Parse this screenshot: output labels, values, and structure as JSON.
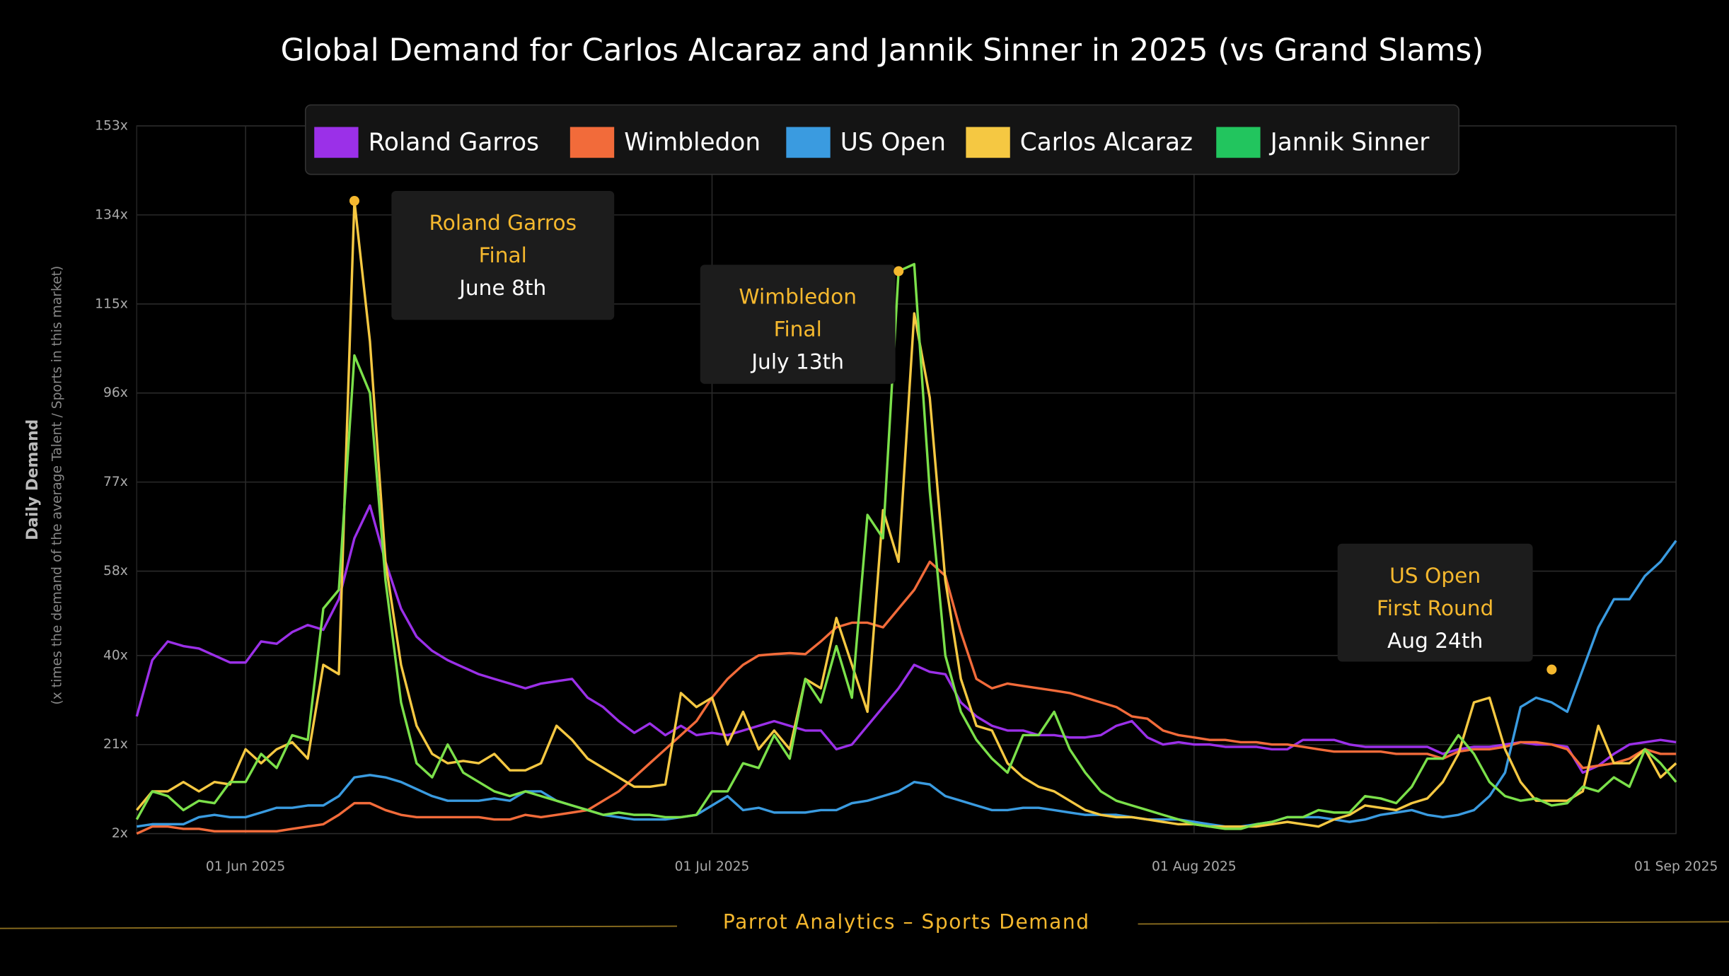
{
  "chart_data": {
    "type": "line",
    "title": "Global Demand for Carlos Alcaraz and Jannik Sinner in 2025 (vs Grand Slams)",
    "y_label": "Daily Demand",
    "y_sublabel": "(x times the demand of the average Talent / Sports in this market)",
    "footer": "Parrot Analytics – Sports Demand",
    "x": [
      "2025-05-25",
      "2025-05-26",
      "2025-05-27",
      "2025-05-28",
      "2025-05-29",
      "2025-05-30",
      "2025-05-31",
      "2025-06-01",
      "2025-06-02",
      "2025-06-03",
      "2025-06-04",
      "2025-06-05",
      "2025-06-06",
      "2025-06-07",
      "2025-06-08",
      "2025-06-09",
      "2025-06-10",
      "2025-06-11",
      "2025-06-12",
      "2025-06-13",
      "2025-06-14",
      "2025-06-15",
      "2025-06-16",
      "2025-06-17",
      "2025-06-18",
      "2025-06-19",
      "2025-06-20",
      "2025-06-21",
      "2025-06-22",
      "2025-06-23",
      "2025-06-24",
      "2025-06-25",
      "2025-06-26",
      "2025-06-27",
      "2025-06-28",
      "2025-06-29",
      "2025-06-30",
      "2025-07-01",
      "2025-07-02",
      "2025-07-03",
      "2025-07-04",
      "2025-07-05",
      "2025-07-06",
      "2025-07-07",
      "2025-07-08",
      "2025-07-09",
      "2025-07-10",
      "2025-07-11",
      "2025-07-12",
      "2025-07-13",
      "2025-07-14",
      "2025-07-15",
      "2025-07-16",
      "2025-07-17",
      "2025-07-18",
      "2025-07-19",
      "2025-07-20",
      "2025-07-21",
      "2025-07-22",
      "2025-07-23",
      "2025-07-24",
      "2025-07-25",
      "2025-07-26",
      "2025-07-27",
      "2025-07-28",
      "2025-07-29",
      "2025-07-30",
      "2025-07-31",
      "2025-08-01",
      "2025-08-02",
      "2025-08-03",
      "2025-08-04",
      "2025-08-05",
      "2025-08-06",
      "2025-08-07",
      "2025-08-08",
      "2025-08-09",
      "2025-08-10",
      "2025-08-11",
      "2025-08-12",
      "2025-08-13",
      "2025-08-14",
      "2025-08-15",
      "2025-08-16",
      "2025-08-17",
      "2025-08-18",
      "2025-08-19",
      "2025-08-20",
      "2025-08-21",
      "2025-08-22",
      "2025-08-23",
      "2025-08-24",
      "2025-08-25",
      "2025-08-26",
      "2025-08-27",
      "2025-08-28",
      "2025-08-29",
      "2025-08-30",
      "2025-08-31",
      "2025-09-01"
    ],
    "series": [
      {
        "name": "Roland Garros",
        "color": "#9b30e8",
        "values": [
          27,
          39,
          43,
          42,
          41.5,
          40,
          38.5,
          38.5,
          43,
          42.5,
          45,
          46.5,
          45.5,
          52,
          65,
          72,
          60,
          50,
          44,
          41,
          39,
          37.5,
          36,
          35,
          34,
          33,
          34,
          34.5,
          35,
          31,
          29,
          26,
          23.5,
          25.5,
          23,
          25,
          23,
          23.5,
          23,
          24,
          25,
          26,
          25,
          24,
          24,
          20,
          21,
          25,
          29,
          33,
          38,
          36.5,
          36,
          30,
          27,
          25,
          24,
          24,
          23,
          23,
          22.5,
          22.5,
          23,
          25,
          26,
          22.5,
          21,
          21.5,
          21,
          21,
          20.5,
          20.5,
          20.5,
          20,
          20,
          22,
          22,
          22,
          21,
          20.5,
          20.5,
          20.5,
          20.5,
          20.5,
          19,
          20,
          20.5,
          20.5,
          21,
          21.5,
          21,
          21,
          20.5,
          15,
          16.5,
          19,
          21,
          21.5,
          22,
          21.5
        ]
      },
      {
        "name": "Wimbledon",
        "color": "#f26b3a",
        "values": [
          2,
          3.5,
          3.5,
          3,
          3,
          2.5,
          2.5,
          2.5,
          2.5,
          2.5,
          3,
          3.5,
          4,
          6,
          8.5,
          8.5,
          7,
          6,
          5.5,
          5.5,
          5.5,
          5.5,
          5.5,
          5,
          5,
          6,
          5.5,
          6,
          6.5,
          7,
          9,
          11,
          14,
          17,
          20,
          23,
          26,
          31,
          35,
          38,
          40,
          40.3,
          40.5,
          40.3,
          43,
          46,
          47,
          47,
          46,
          50,
          54,
          60,
          57,
          45,
          35,
          33,
          34,
          33.5,
          33,
          32.5,
          32,
          31,
          30,
          29,
          27,
          26.5,
          24,
          23,
          22.5,
          22,
          22,
          21.5,
          21.5,
          21,
          21,
          20.5,
          20,
          19.5,
          19.5,
          19.5,
          19.5,
          19,
          19,
          19,
          18,
          19.5,
          20,
          20,
          20.5,
          21.5,
          21.5,
          21,
          20,
          16,
          16.5,
          17,
          18,
          20,
          19,
          19
        ]
      },
      {
        "name": "US Open",
        "color": "#3a9be0",
        "values": [
          3.5,
          4,
          4,
          4,
          5.5,
          6,
          5.5,
          5.5,
          6.5,
          7.5,
          7.5,
          8,
          8,
          10,
          14,
          14.5,
          14,
          13,
          11.5,
          10,
          9,
          9,
          9,
          9.5,
          9,
          11,
          11,
          9,
          8,
          7,
          6,
          5.5,
          5,
          5,
          5,
          5.5,
          6,
          8,
          10,
          7,
          7.5,
          6.5,
          6.5,
          6.5,
          7,
          7,
          8.5,
          9,
          10,
          11,
          13,
          12.5,
          10,
          9,
          8,
          7,
          7,
          7.5,
          7.5,
          7,
          6.5,
          6,
          6,
          6,
          5.5,
          5,
          5,
          5,
          4.5,
          4,
          3.5,
          3.5,
          4,
          4.5,
          5.5,
          5.5,
          5.5,
          5,
          4.5,
          5,
          6,
          6.5,
          7,
          6,
          5.5,
          6,
          7,
          10,
          15,
          29,
          31,
          30,
          28,
          37,
          46,
          52,
          52,
          57,
          60,
          64.5
        ]
      },
      {
        "name": "Carlos Alcaraz",
        "color": "#f5c842",
        "values": [
          7,
          11,
          11,
          13,
          11,
          13,
          12.5,
          20,
          17,
          20,
          21.5,
          18,
          38,
          36,
          137,
          107,
          60,
          38,
          25,
          19,
          17,
          17.5,
          17,
          19,
          15.5,
          15.5,
          17,
          25,
          22,
          18,
          16,
          14,
          12,
          12,
          12.5,
          32,
          29,
          31,
          21,
          28,
          20,
          24,
          20,
          35,
          33,
          48,
          38,
          28,
          71,
          60,
          113,
          95,
          56,
          35,
          25,
          24,
          17,
          14,
          12,
          11,
          9,
          7,
          6,
          5.5,
          5.5,
          5,
          4.5,
          4,
          4,
          3.5,
          3.5,
          3.5,
          3.5,
          4,
          4.5,
          4,
          3.5,
          5,
          6,
          8,
          7.5,
          7,
          8.5,
          9.5,
          13,
          19,
          30,
          31,
          20,
          13,
          9,
          9,
          9,
          11,
          25,
          17,
          17,
          20,
          14,
          17
        ]
      },
      {
        "name": "Jannik Sinner",
        "color": "#22c55e",
        "line_color": "#7be04a",
        "values": [
          5,
          11,
          10,
          7,
          9,
          8.5,
          13,
          13,
          19,
          16,
          23,
          22,
          50,
          54,
          104,
          96,
          56,
          30,
          17,
          14,
          21,
          15,
          13,
          11,
          10,
          11,
          10,
          9,
          8,
          7,
          6,
          6.5,
          6,
          6,
          5.5,
          5.5,
          6,
          11,
          11,
          17,
          16,
          23,
          18,
          35,
          30,
          42,
          31,
          70,
          65,
          122,
          123.5,
          75,
          40,
          28,
          22,
          18,
          15,
          23,
          23,
          28,
          20,
          15,
          11,
          9,
          8,
          7,
          6,
          5,
          4,
          3.5,
          3,
          3,
          4,
          4.5,
          5.5,
          5.5,
          7,
          6.5,
          6.5,
          10,
          9.5,
          8.5,
          12,
          18,
          18,
          23,
          19,
          13,
          10,
          9,
          9.5,
          8,
          8.5,
          12,
          11,
          14,
          12,
          20,
          17,
          13
        ]
      }
    ],
    "annotations": [
      {
        "lines": [
          "Roland Garros",
          "Final",
          "June 8th"
        ],
        "x": "2025-06-08",
        "value": 137
      },
      {
        "lines": [
          "Wimbledon",
          "Final",
          "July 13th"
        ],
        "x": "2025-07-13",
        "value": 122
      },
      {
        "lines": [
          "US Open",
          "First Round",
          "Aug 24th"
        ],
        "x": "2025-08-24",
        "value": 37
      }
    ],
    "annotation_color": "#f5b82e",
    "xlim": [
      "2025-05-25",
      "2025-09-01"
    ],
    "xticks": [
      {
        "value": "2025-06-01",
        "label": "01 Jun 2025"
      },
      {
        "value": "2025-07-01",
        "label": "01 Jul 2025"
      },
      {
        "value": "2025-08-01",
        "label": "01 Aug 2025"
      },
      {
        "value": "2025-09-01",
        "label": "01 Sep 2025"
      }
    ],
    "ylim": [
      2,
      153
    ],
    "yticks": [
      {
        "value": 2,
        "label": "2x"
      },
      {
        "value": 21,
        "label": "21x"
      },
      {
        "value": 40,
        "label": "40x"
      },
      {
        "value": 58,
        "label": "58x"
      },
      {
        "value": 77,
        "label": "77x"
      },
      {
        "value": 96,
        "label": "96x"
      },
      {
        "value": 115,
        "label": "115x"
      },
      {
        "value": 134,
        "label": "134x"
      },
      {
        "value": 153,
        "label": "153x"
      }
    ],
    "grid": true,
    "legend": "top"
  }
}
